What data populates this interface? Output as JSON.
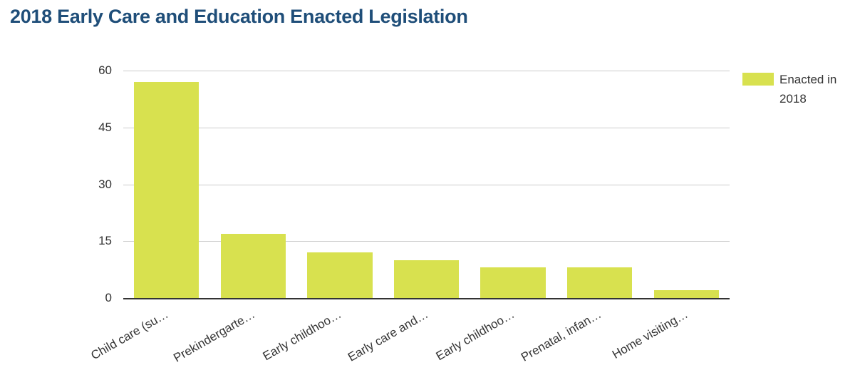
{
  "chart_data": {
    "type": "bar",
    "title": "2018 Early Care and Education Enacted Legislation",
    "categories": [
      "Child care (su…",
      "Prekindergarte…",
      "Early childhoo…",
      "Early care and…",
      "Early childhoo…",
      "Prenatal, infan…",
      "Home visiting…"
    ],
    "series": [
      {
        "name": "Enacted in 2018",
        "values": [
          57,
          17,
          12,
          10,
          8,
          8,
          2
        ]
      }
    ],
    "xlabel": "",
    "ylabel": "",
    "ylim": [
      0,
      60
    ],
    "yticks": [
      0,
      15,
      30,
      45,
      60
    ],
    "grid": true,
    "legend_position": "top-right"
  },
  "legend": {
    "label": "Enacted in 2018"
  },
  "colors": {
    "bar": "#d8e14f",
    "title": "#1f4e79",
    "tick_label": "#333333",
    "gridline": "#cccccc",
    "axis_line": "#333333",
    "background": "#ffffff"
  }
}
